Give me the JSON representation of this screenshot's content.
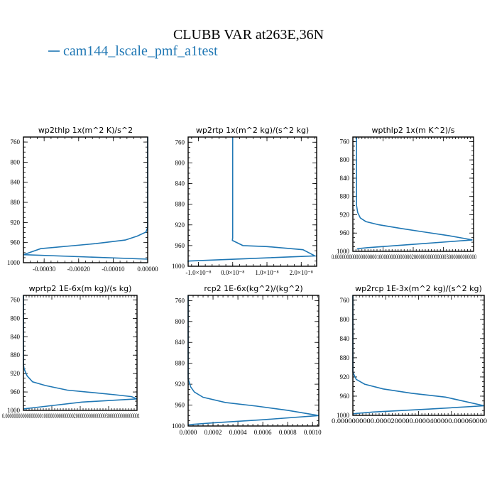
{
  "figure": {
    "title": "CLUBB VAR at263E,36N",
    "legend": [
      {
        "label": "cam144_lscale_pmf_a1test",
        "color": "#1f77b4"
      }
    ]
  },
  "chart_data": [
    {
      "type": "line",
      "title": "wp2thlp   1x(m^2 K)/s^2",
      "ylim": [
        1000,
        750
      ],
      "yticks": [
        760,
        800,
        840,
        880,
        920,
        960,
        1000
      ],
      "xlim": [
        -0.00036,
        0.0
      ],
      "xticks": [
        -0.0003,
        -0.0002,
        -0.0001,
        0.0
      ],
      "xticklabels": [
        "-0.00030",
        "-0.00020",
        "-0.00010",
        "0.00000"
      ],
      "series": [
        {
          "x": [
            0,
            0,
            0,
            0,
            -5e-06,
            -3e-05,
            -6.5e-05,
            -0.00015,
            -0.00031,
            -0.00036,
            0
          ],
          "y": [
            750,
            880,
            910,
            930,
            939,
            947,
            955,
            962,
            972,
            984,
            993
          ]
        }
      ]
    },
    {
      "type": "line",
      "title": "wp2rtp   1x(m^2 kg)/(s^2 kg)",
      "ylim": [
        1000,
        750
      ],
      "yticks": [
        760,
        800,
        840,
        880,
        920,
        960,
        1000
      ],
      "xlim": [
        -1.3e-08,
        2.45e-08
      ],
      "xticks": [
        -1e-08,
        0,
        1e-08,
        2e-08
      ],
      "xticklabels": [
        "-1.0×10⁻⁸",
        "0.0×10⁻⁸",
        "1.0×10⁻⁸",
        "2.0×10⁻⁸"
      ],
      "series": [
        {
          "x": [
            0,
            0,
            0,
            0,
            -2e-11,
            -1e-10,
            3e-09,
            1e-08,
            2.05e-08,
            2.4e-08,
            -1.3e-08,
            -1.3e-08
          ],
          "y": [
            750,
            920,
            935,
            940,
            945,
            950,
            960,
            962,
            968,
            980,
            990,
            992
          ]
        }
      ]
    },
    {
      "type": "line",
      "title": "wpthlp2   1x(m K^2)/s",
      "ylim": [
        1000,
        750
      ],
      "yticks": [
        760,
        800,
        840,
        880,
        920,
        960,
        1000
      ],
      "xlim": [
        -1e-06,
        3.15e-05
      ],
      "xticks": [],
      "xticklabels": [
        "0.0000000000000000001000000000000002000000000000003000000000000"
      ],
      "series": [
        {
          "x": [
            0,
            0,
            3e-07,
            1e-06,
            2.5e-06,
            6e-06,
            1.2e-05,
            1.85e-05,
            2.5e-05,
            3.12e-05,
            1.8e-05,
            3e-06,
            5e-07,
            1e-07
          ],
          "y": [
            750,
            900,
            915,
            927,
            935,
            942,
            950,
            958,
            966,
            975,
            983,
            992,
            994,
            995
          ]
        }
      ]
    },
    {
      "type": "line",
      "title": "wprtp2   1E-6x(m kg)/(s kg)",
      "ylim": [
        1000,
        750
      ],
      "yticks": [
        760,
        800,
        840,
        880,
        920,
        960,
        1000
      ],
      "xlim": [
        0,
        3.1e-05
      ],
      "xticks": [],
      "xticklabels": [
        "0.000000000000000001000000000000002000000000000003000000000000001"
      ],
      "series": [
        {
          "x": [
            0,
            0,
            2e-07,
            1e-06,
            2.5e-06,
            6e-06,
            1.2e-05,
            1.85e-05,
            2.5e-05,
            2.95e-05,
            3.1e-05,
            1.6e-05,
            4e-06,
            8e-07,
            0
          ],
          "y": [
            750,
            900,
            910,
            925,
            938,
            946,
            956,
            961,
            966,
            970,
            975,
            982,
            993,
            996,
            997
          ]
        }
      ]
    },
    {
      "type": "line",
      "title": "rcp2   1E-6x(kg^2)/(kg^2)",
      "ylim": [
        1000,
        750
      ],
      "yticks": [
        760,
        800,
        840,
        880,
        920,
        960,
        1000
      ],
      "xlim": [
        0,
        0.00105
      ],
      "xticks": [
        0,
        0.0002,
        0.0004,
        0.0006,
        0.0008,
        0.001
      ],
      "xticklabels": [
        "0.0000",
        "0.0002",
        "0.0004",
        "0.0006",
        "0.0008",
        "0.0010"
      ],
      "series": [
        {
          "x": [
            0,
            0,
            2e-05,
            5e-05,
            0.00012,
            0.0003,
            0.00055,
            0.0008,
            0.00105,
            0.0006,
            0.0002,
            3e-05,
            0
          ],
          "y": [
            750,
            910,
            925,
            935,
            945,
            955,
            962,
            970,
            980,
            988,
            994,
            997,
            998
          ]
        }
      ]
    },
    {
      "type": "line",
      "title": "wp2rcp   1E-3x(m^2 kg)/(s^2 kg)",
      "ylim": [
        1000,
        750
      ],
      "yticks": [
        760,
        800,
        840,
        880,
        920,
        960,
        1000
      ],
      "xlim": [
        0,
        7.8e-05
      ],
      "xticks": [],
      "xticklabels": [
        "0.0000000000.0000200000.0000400000.000060000"
      ],
      "series": [
        {
          "x": [
            0,
            0,
            2e-06,
            7e-06,
            1.8e-05,
            3.5e-05,
            5.5e-05,
            7.8e-05,
            4.5e-05,
            1.2e-05,
            2e-06,
            0
          ],
          "y": [
            750,
            910,
            925,
            935,
            945,
            954,
            962,
            980,
            987,
            993,
            996,
            997
          ]
        }
      ]
    }
  ]
}
